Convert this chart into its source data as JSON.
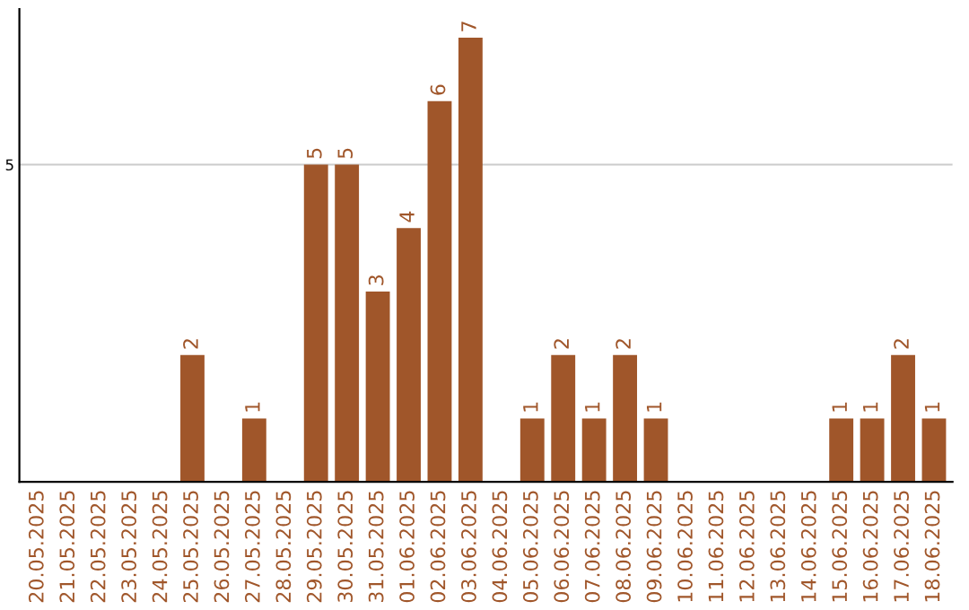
{
  "chart_data": {
    "type": "bar",
    "categories": [
      "20.05.2025",
      "21.05.2025",
      "22.05.2025",
      "23.05.2025",
      "24.05.2025",
      "25.05.2025",
      "26.05.2025",
      "27.05.2025",
      "28.05.2025",
      "29.05.2025",
      "30.05.2025",
      "31.05.2025",
      "01.06.2025",
      "02.06.2025",
      "03.06.2025",
      "04.06.2025",
      "05.06.2025",
      "06.06.2025",
      "07.06.2025",
      "08.06.2025",
      "09.06.2025",
      "10.06.2025",
      "11.06.2025",
      "12.06.2025",
      "13.06.2025",
      "14.06.2025",
      "15.06.2025",
      "16.06.2025",
      "17.06.2025",
      "18.06.2025"
    ],
    "values": [
      0,
      0,
      0,
      0,
      0,
      2,
      0,
      1,
      0,
      5,
      5,
      3,
      4,
      6,
      7,
      0,
      1,
      2,
      1,
      2,
      1,
      0,
      0,
      0,
      0,
      0,
      1,
      1,
      2,
      1
    ],
    "value_labels": [
      null,
      null,
      null,
      null,
      null,
      "2",
      null,
      "1",
      null,
      "5",
      "5",
      "3",
      "4",
      "6",
      "7",
      null,
      "1",
      "2",
      "1",
      "2",
      "1",
      null,
      null,
      null,
      null,
      null,
      "1",
      "1",
      "2",
      "1"
    ],
    "color": "#a0562a",
    "ylim": [
      0,
      7.45
    ],
    "yticks": [
      5
    ],
    "grid": "y"
  }
}
